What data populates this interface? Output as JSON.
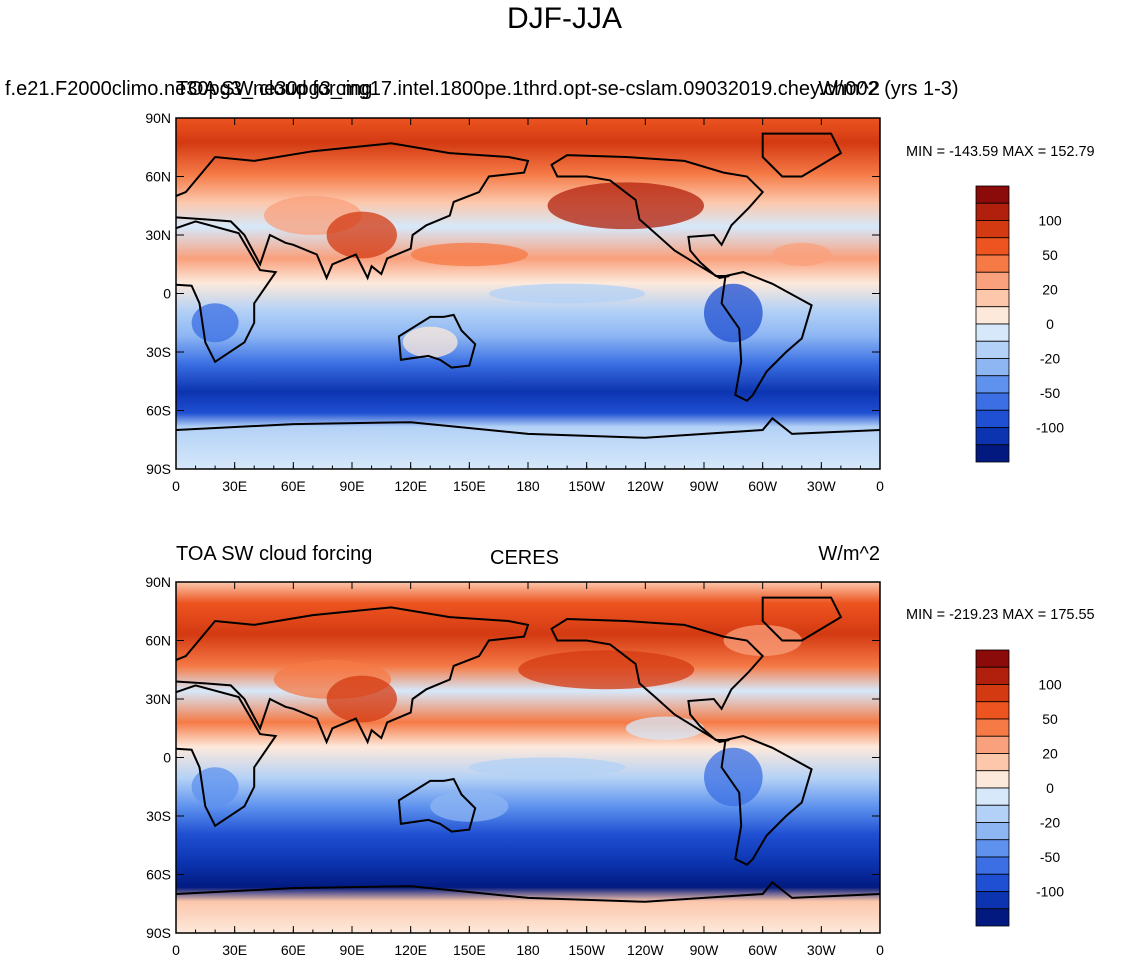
{
  "title": "DJF-JJA",
  "panels": [
    {
      "left_title": "TOA SW cloud forcing",
      "center_title": "f.e21.F2000climo.ne30pg3_ne30pg3_mg17.intel.1800pe.1thrd.opt-se-cslam.09032019.chey.ch002 (yrs 1-3)",
      "units": "W/m^2",
      "minmax": "MIN = -143.59 MAX = 152.79"
    },
    {
      "left_title": "TOA SW cloud forcing",
      "center_title": "CERES",
      "units": "W/m^2",
      "minmax": "MIN = -219.23 MAX = 175.55"
    }
  ],
  "chart_data": {
    "type": "heatmap",
    "projection": "cylindrical equidistant (global map, centered on 180)",
    "x_tick_labels": [
      "0",
      "30E",
      "60E",
      "90E",
      "120E",
      "150E",
      "180",
      "150W",
      "120W",
      "90W",
      "60W",
      "30W",
      "0"
    ],
    "y_tick_labels": [
      "90N",
      "60N",
      "30N",
      "0",
      "30S",
      "60S",
      "90S"
    ],
    "colorbar": {
      "labels": [
        "100",
        "50",
        "20",
        "0",
        "-20",
        "-50",
        "-100"
      ],
      "colors": [
        "#8b0a0a",
        "#b1200c",
        "#d43a12",
        "#ed5420",
        "#f57a46",
        "#f9a07c",
        "#fcc7ab",
        "#fde9db",
        "#d6e8fa",
        "#b3d1f6",
        "#8db6f3",
        "#5e92ee",
        "#3b6fe3",
        "#1f4fd2",
        "#0c34b0",
        "#021a80"
      ]
    },
    "maps": [
      {
        "name": "f.e21.F2000climo.ne30pg3_ne30pg3_mg17.intel.1800pe.1thrd.opt-se-cslam.09032019.chey.ch002 (yrs 1-3)",
        "min": -143.59,
        "max": 152.79
      },
      {
        "name": "CERES",
        "min": -219.23,
        "max": 175.55
      }
    ]
  }
}
